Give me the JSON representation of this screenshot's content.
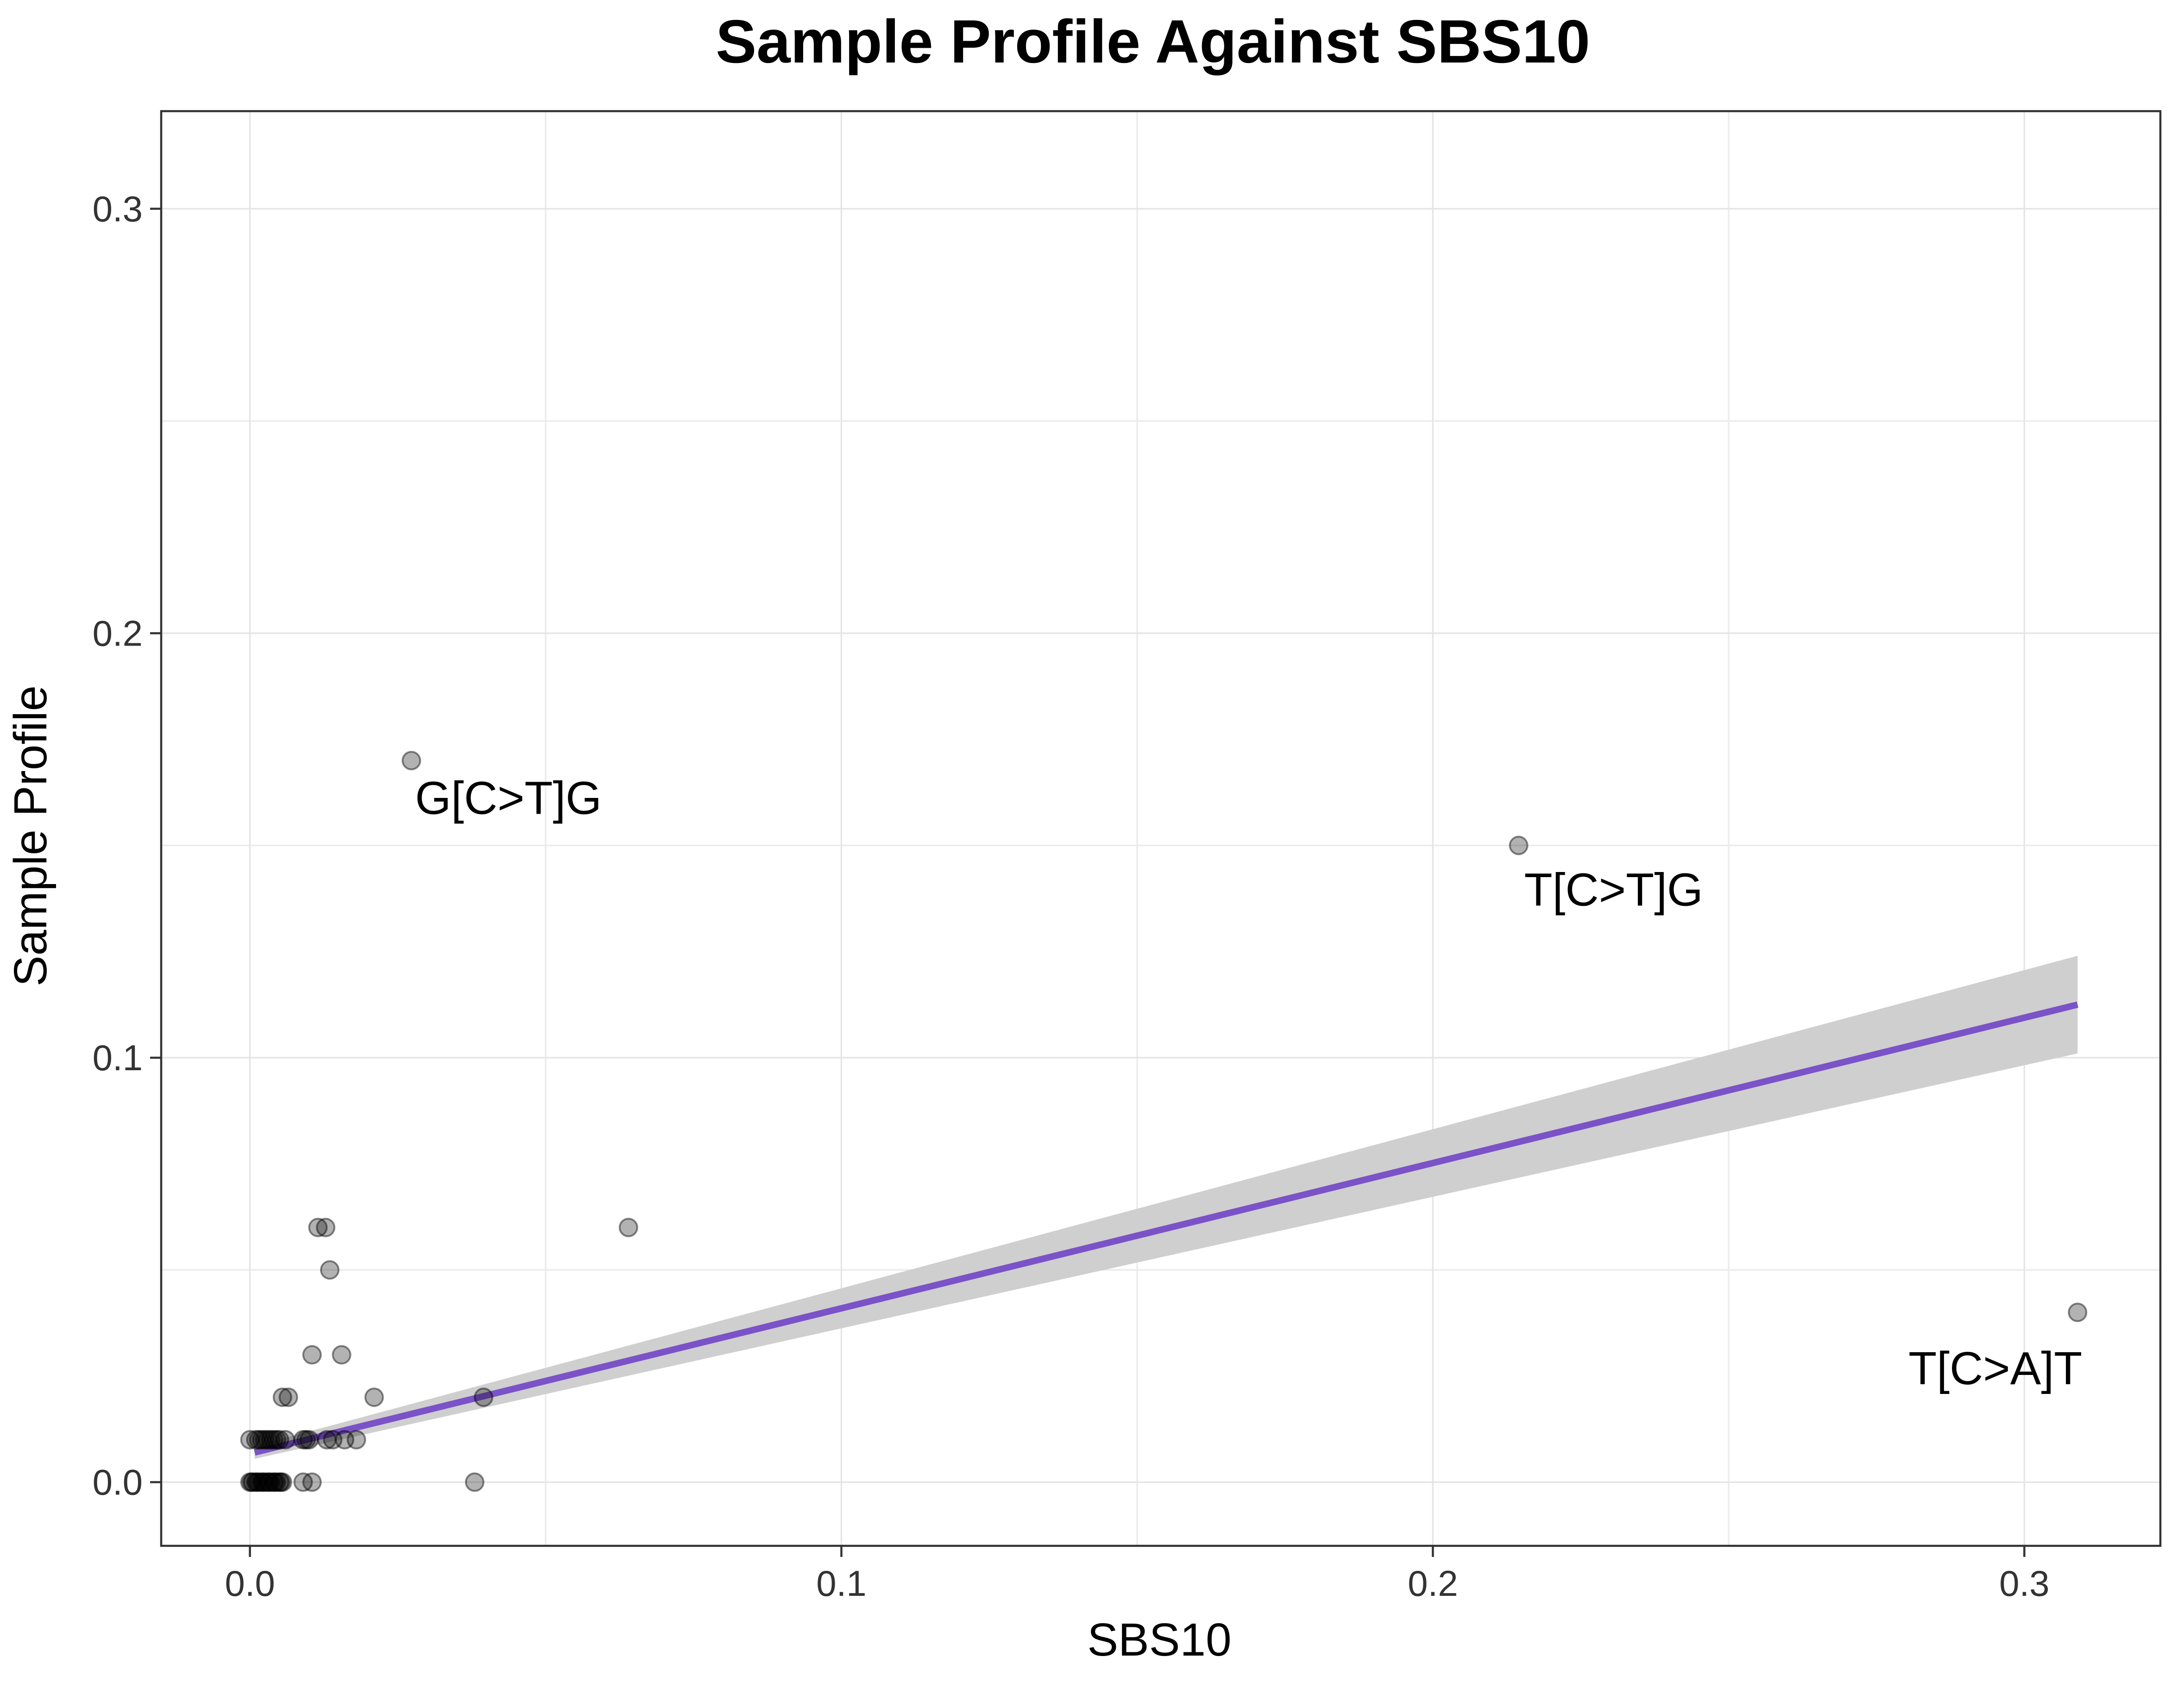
{
  "chart_data": {
    "type": "scatter",
    "title": "Sample Profile Against SBS10",
    "xlabel": "SBS10",
    "ylabel": "Sample Profile",
    "xlim": [
      -0.015,
      0.323
    ],
    "ylim": [
      -0.015,
      0.323
    ],
    "x_ticks": [
      0.0,
      0.1,
      0.2,
      0.3
    ],
    "x_tick_labels": [
      "0.0",
      "0.1",
      "0.2",
      "0.3"
    ],
    "y_ticks": [
      0.0,
      0.1,
      0.2,
      0.3
    ],
    "y_tick_labels": [
      "0.0",
      "0.1",
      "0.2",
      "0.3"
    ],
    "x_minor": [
      0.05,
      0.15,
      0.25
    ],
    "y_minor": [
      0.05,
      0.15,
      0.25
    ],
    "grid": true,
    "point_color": "#000000",
    "point_opacity": 0.3,
    "points": [
      {
        "x": 0.0,
        "y": 0.0
      },
      {
        "x": 0.0005,
        "y": 0.0
      },
      {
        "x": 0.001,
        "y": 0.0
      },
      {
        "x": 0.0015,
        "y": 0.0
      },
      {
        "x": 0.002,
        "y": 0.0
      },
      {
        "x": 0.0025,
        "y": 0.0
      },
      {
        "x": 0.003,
        "y": 0.0
      },
      {
        "x": 0.0035,
        "y": 0.0
      },
      {
        "x": 0.004,
        "y": 0.0
      },
      {
        "x": 0.0045,
        "y": 0.0
      },
      {
        "x": 0.005,
        "y": 0.0
      },
      {
        "x": 0.0055,
        "y": 0.0
      },
      {
        "x": 0.0003,
        "y": 0.0
      },
      {
        "x": 0.0012,
        "y": 0.0
      },
      {
        "x": 0.0022,
        "y": 0.0
      },
      {
        "x": 0.0032,
        "y": 0.0
      },
      {
        "x": 0.0042,
        "y": 0.0
      },
      {
        "x": 0.0052,
        "y": 0.0
      },
      {
        "x": 0.0,
        "y": 0.01
      },
      {
        "x": 0.001,
        "y": 0.01
      },
      {
        "x": 0.002,
        "y": 0.01
      },
      {
        "x": 0.003,
        "y": 0.01
      },
      {
        "x": 0.004,
        "y": 0.01
      },
      {
        "x": 0.005,
        "y": 0.01
      },
      {
        "x": 0.006,
        "y": 0.01
      },
      {
        "x": 0.0015,
        "y": 0.01
      },
      {
        "x": 0.0025,
        "y": 0.01
      },
      {
        "x": 0.0035,
        "y": 0.01
      },
      {
        "x": 0.0045,
        "y": 0.01
      },
      {
        "x": 0.009,
        "y": 0.01
      },
      {
        "x": 0.0095,
        "y": 0.01
      },
      {
        "x": 0.01,
        "y": 0.01
      },
      {
        "x": 0.013,
        "y": 0.01
      },
      {
        "x": 0.014,
        "y": 0.01
      },
      {
        "x": 0.016,
        "y": 0.01
      },
      {
        "x": 0.018,
        "y": 0.01
      },
      {
        "x": 0.009,
        "y": 0.0
      },
      {
        "x": 0.0105,
        "y": 0.0
      },
      {
        "x": 0.0055,
        "y": 0.02
      },
      {
        "x": 0.0065,
        "y": 0.02
      },
      {
        "x": 0.021,
        "y": 0.02
      },
      {
        "x": 0.0105,
        "y": 0.03
      },
      {
        "x": 0.0155,
        "y": 0.03
      },
      {
        "x": 0.0135,
        "y": 0.05
      },
      {
        "x": 0.0115,
        "y": 0.06
      },
      {
        "x": 0.0128,
        "y": 0.06
      },
      {
        "x": 0.064,
        "y": 0.06
      },
      {
        "x": 0.038,
        "y": 0.0
      },
      {
        "x": 0.0395,
        "y": 0.02
      },
      {
        "x": 0.0273,
        "y": 0.17
      },
      {
        "x": 0.2145,
        "y": 0.15
      },
      {
        "x": 0.309,
        "y": 0.04
      }
    ],
    "labels": [
      {
        "text": "G[C>T]G",
        "x": 0.0273,
        "y": 0.17
      },
      {
        "text": "T[C>T]G",
        "x": 0.2145,
        "y": 0.15
      },
      {
        "text": "T[C>A]T",
        "x": 0.309,
        "y": 0.04
      }
    ],
    "fit": {
      "type": "linear",
      "color": "#7b52c7",
      "band_color": "#cfcfcf",
      "x": [
        0.0008,
        0.309
      ],
      "y": [
        0.007,
        0.1125
      ],
      "band_lower": [
        0.0055,
        0.101
      ],
      "band_upper": [
        0.0085,
        0.124
      ]
    }
  }
}
